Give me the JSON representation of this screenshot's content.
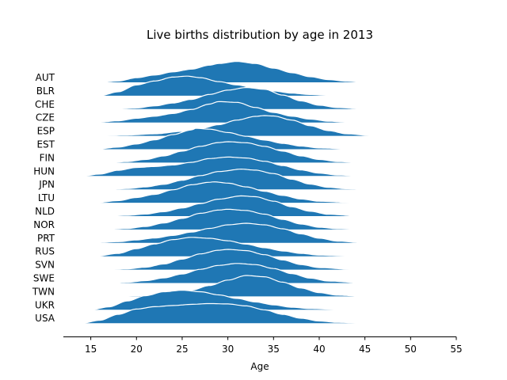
{
  "chart_data": {
    "type": "area",
    "subtype": "ridgeline",
    "title": "Live births distribution by age in 2013",
    "xlabel": "Age",
    "ylabel": "",
    "xlim": [
      12,
      55
    ],
    "xticks": [
      15,
      20,
      25,
      30,
      35,
      40,
      45,
      50,
      55
    ],
    "grid": false,
    "fill_color": "#1f77b4",
    "outline_color": "#ffffff",
    "series": [
      {
        "name": "AUT",
        "start": 16,
        "end": 45,
        "peak_x": 31,
        "peak_height": 1.6,
        "profile": [
          [
            16,
            0.0
          ],
          [
            18,
            0.06
          ],
          [
            20,
            0.22
          ],
          [
            22,
            0.35
          ],
          [
            24,
            0.5
          ],
          [
            26,
            0.63
          ],
          [
            28,
            0.82
          ],
          [
            29,
            0.9
          ],
          [
            31,
            1.0
          ],
          [
            33,
            0.9
          ],
          [
            35,
            0.68
          ],
          [
            37,
            0.46
          ],
          [
            39,
            0.27
          ],
          [
            41,
            0.13
          ],
          [
            43,
            0.05
          ],
          [
            45,
            0.0
          ]
        ]
      },
      {
        "name": "BLR",
        "start": 16,
        "end": 43,
        "peak_x": 25.5,
        "peak_height": 1.5,
        "profile": [
          [
            16,
            0.0
          ],
          [
            18,
            0.2
          ],
          [
            20,
            0.55
          ],
          [
            22,
            0.75
          ],
          [
            24,
            0.95
          ],
          [
            25.5,
            1.0
          ],
          [
            27,
            0.92
          ],
          [
            29,
            0.72
          ],
          [
            31,
            0.55
          ],
          [
            33,
            0.38
          ],
          [
            35,
            0.24
          ],
          [
            37,
            0.13
          ],
          [
            39,
            0.06
          ],
          [
            41,
            0.02
          ],
          [
            43,
            0.0
          ]
        ]
      },
      {
        "name": "CHE",
        "start": 17.5,
        "end": 45,
        "peak_x": 32,
        "peak_height": 1.65,
        "profile": [
          [
            17.5,
            0.0
          ],
          [
            20,
            0.05
          ],
          [
            22,
            0.15
          ],
          [
            24,
            0.28
          ],
          [
            26,
            0.45
          ],
          [
            28,
            0.68
          ],
          [
            30,
            0.88
          ],
          [
            32,
            1.0
          ],
          [
            34,
            0.92
          ],
          [
            36,
            0.65
          ],
          [
            38,
            0.38
          ],
          [
            40,
            0.18
          ],
          [
            42,
            0.07
          ],
          [
            45,
            0.0
          ]
        ]
      },
      {
        "name": "CZE",
        "start": 15.5,
        "end": 43.5,
        "peak_x": 29,
        "peak_height": 1.6,
        "profile": [
          [
            15.5,
            0.0
          ],
          [
            18,
            0.08
          ],
          [
            20,
            0.2
          ],
          [
            22,
            0.3
          ],
          [
            24,
            0.43
          ],
          [
            26,
            0.62
          ],
          [
            28,
            0.88
          ],
          [
            29,
            1.0
          ],
          [
            31,
            0.96
          ],
          [
            33,
            0.72
          ],
          [
            35,
            0.48
          ],
          [
            37,
            0.3
          ],
          [
            39,
            0.16
          ],
          [
            41,
            0.06
          ],
          [
            43.5,
            0.0
          ]
        ]
      },
      {
        "name": "ESP",
        "start": 16,
        "end": 46,
        "peak_x": 34,
        "peak_height": 1.55,
        "profile": [
          [
            16,
            0.0
          ],
          [
            19,
            0.04
          ],
          [
            22,
            0.1
          ],
          [
            25,
            0.22
          ],
          [
            27,
            0.36
          ],
          [
            29,
            0.55
          ],
          [
            31,
            0.78
          ],
          [
            33,
            0.96
          ],
          [
            34,
            1.0
          ],
          [
            35,
            0.98
          ],
          [
            37,
            0.78
          ],
          [
            39,
            0.5
          ],
          [
            41,
            0.26
          ],
          [
            43,
            0.1
          ],
          [
            46,
            0.0
          ]
        ]
      },
      {
        "name": "EST",
        "start": 15.5,
        "end": 44,
        "peak_x": 26.5,
        "peak_height": 1.6,
        "profile": [
          [
            15.5,
            0.0
          ],
          [
            18,
            0.1
          ],
          [
            20,
            0.25
          ],
          [
            22,
            0.45
          ],
          [
            24,
            0.7
          ],
          [
            26,
            0.92
          ],
          [
            26.5,
            1.0
          ],
          [
            28,
            0.96
          ],
          [
            30,
            0.8
          ],
          [
            32,
            0.62
          ],
          [
            34,
            0.44
          ],
          [
            36,
            0.28
          ],
          [
            38,
            0.15
          ],
          [
            40,
            0.06
          ],
          [
            44,
            0.0
          ]
        ]
      },
      {
        "name": "FIN",
        "start": 17,
        "end": 44.5,
        "peak_x": 30,
        "peak_height": 1.6,
        "profile": [
          [
            17,
            0.0
          ],
          [
            19,
            0.05
          ],
          [
            21,
            0.15
          ],
          [
            23,
            0.32
          ],
          [
            25,
            0.55
          ],
          [
            27,
            0.78
          ],
          [
            29,
            0.96
          ],
          [
            30,
            1.0
          ],
          [
            32,
            0.95
          ],
          [
            34,
            0.78
          ],
          [
            36,
            0.55
          ],
          [
            38,
            0.32
          ],
          [
            40,
            0.15
          ],
          [
            42,
            0.05
          ],
          [
            44.5,
            0.0
          ]
        ]
      },
      {
        "name": "HUN",
        "start": 14,
        "end": 44.5,
        "peak_x": 30,
        "peak_height": 1.45,
        "profile": [
          [
            14,
            0.0
          ],
          [
            16,
            0.1
          ],
          [
            18,
            0.3
          ],
          [
            20,
            0.45
          ],
          [
            22,
            0.5
          ],
          [
            24,
            0.58
          ],
          [
            26,
            0.72
          ],
          [
            28,
            0.92
          ],
          [
            30,
            1.0
          ],
          [
            32,
            0.95
          ],
          [
            34,
            0.78
          ],
          [
            36,
            0.55
          ],
          [
            38,
            0.32
          ],
          [
            40,
            0.15
          ],
          [
            42,
            0.05
          ],
          [
            44.5,
            0.0
          ]
        ]
      },
      {
        "name": "JPN",
        "start": 17,
        "end": 45,
        "peak_x": 31.5,
        "peak_height": 1.55,
        "profile": [
          [
            17,
            0.0
          ],
          [
            19,
            0.04
          ],
          [
            21,
            0.12
          ],
          [
            23,
            0.25
          ],
          [
            25,
            0.45
          ],
          [
            27,
            0.68
          ],
          [
            29,
            0.88
          ],
          [
            31.5,
            1.0
          ],
          [
            33,
            0.95
          ],
          [
            35,
            0.78
          ],
          [
            37,
            0.5
          ],
          [
            39,
            0.26
          ],
          [
            41,
            0.1
          ],
          [
            43,
            0.03
          ],
          [
            45,
            0.0
          ]
        ]
      },
      {
        "name": "LTU",
        "start": 15.5,
        "end": 44,
        "peak_x": 28.5,
        "peak_height": 1.6,
        "profile": [
          [
            15.5,
            0.0
          ],
          [
            18,
            0.1
          ],
          [
            20,
            0.25
          ],
          [
            22,
            0.4
          ],
          [
            24,
            0.62
          ],
          [
            26,
            0.86
          ],
          [
            28,
            0.98
          ],
          [
            28.5,
            1.0
          ],
          [
            30,
            0.94
          ],
          [
            32,
            0.76
          ],
          [
            34,
            0.55
          ],
          [
            36,
            0.35
          ],
          [
            38,
            0.18
          ],
          [
            40,
            0.07
          ],
          [
            44,
            0.0
          ]
        ]
      },
      {
        "name": "NLD",
        "start": 16.5,
        "end": 44.5,
        "peak_x": 31.5,
        "peak_height": 1.55,
        "profile": [
          [
            16.5,
            0.0
          ],
          [
            19,
            0.04
          ],
          [
            21,
            0.1
          ],
          [
            23,
            0.22
          ],
          [
            25,
            0.4
          ],
          [
            27,
            0.62
          ],
          [
            29,
            0.84
          ],
          [
            31.5,
            1.0
          ],
          [
            33,
            0.96
          ],
          [
            35,
            0.74
          ],
          [
            37,
            0.46
          ],
          [
            39,
            0.24
          ],
          [
            41,
            0.09
          ],
          [
            44.5,
            0.0
          ]
        ]
      },
      {
        "name": "NOR",
        "start": 16.5,
        "end": 44.5,
        "peak_x": 30,
        "peak_height": 1.55,
        "profile": [
          [
            16.5,
            0.0
          ],
          [
            19,
            0.05
          ],
          [
            21,
            0.15
          ],
          [
            23,
            0.32
          ],
          [
            25,
            0.55
          ],
          [
            27,
            0.8
          ],
          [
            29,
            0.96
          ],
          [
            30,
            1.0
          ],
          [
            32,
            0.94
          ],
          [
            34,
            0.76
          ],
          [
            36,
            0.5
          ],
          [
            38,
            0.27
          ],
          [
            40,
            0.11
          ],
          [
            42,
            0.04
          ],
          [
            44.5,
            0.0
          ]
        ]
      },
      {
        "name": "PRT",
        "start": 15,
        "end": 45,
        "peak_x": 32,
        "peak_height": 1.5,
        "profile": [
          [
            15,
            0.0
          ],
          [
            18,
            0.06
          ],
          [
            20,
            0.15
          ],
          [
            22,
            0.25
          ],
          [
            24,
            0.38
          ],
          [
            26,
            0.55
          ],
          [
            28,
            0.74
          ],
          [
            30,
            0.92
          ],
          [
            32,
            1.0
          ],
          [
            34,
            0.92
          ],
          [
            36,
            0.72
          ],
          [
            38,
            0.46
          ],
          [
            40,
            0.24
          ],
          [
            42,
            0.09
          ],
          [
            45,
            0.0
          ]
        ]
      },
      {
        "name": "RUS",
        "start": 15.5,
        "end": 44,
        "peak_x": 26,
        "peak_height": 1.45,
        "profile": [
          [
            15.5,
            0.0
          ],
          [
            18,
            0.15
          ],
          [
            20,
            0.4
          ],
          [
            22,
            0.65
          ],
          [
            24,
            0.88
          ],
          [
            26,
            1.0
          ],
          [
            28,
            0.95
          ],
          [
            30,
            0.82
          ],
          [
            32,
            0.64
          ],
          [
            34,
            0.45
          ],
          [
            36,
            0.28
          ],
          [
            38,
            0.15
          ],
          [
            40,
            0.06
          ],
          [
            44,
            0.0
          ]
        ]
      },
      {
        "name": "SVN",
        "start": 17,
        "end": 44,
        "peak_x": 30,
        "peak_height": 1.55,
        "profile": [
          [
            17,
            0.0
          ],
          [
            19,
            0.04
          ],
          [
            21,
            0.12
          ],
          [
            23,
            0.28
          ],
          [
            25,
            0.52
          ],
          [
            27,
            0.78
          ],
          [
            29,
            0.96
          ],
          [
            30,
            1.0
          ],
          [
            32,
            0.94
          ],
          [
            34,
            0.74
          ],
          [
            36,
            0.48
          ],
          [
            38,
            0.25
          ],
          [
            40,
            0.1
          ],
          [
            44,
            0.0
          ]
        ]
      },
      {
        "name": "SWE",
        "start": 17,
        "end": 45,
        "peak_x": 31,
        "peak_height": 1.5,
        "profile": [
          [
            17,
            0.0
          ],
          [
            19,
            0.04
          ],
          [
            21,
            0.12
          ],
          [
            23,
            0.26
          ],
          [
            25,
            0.46
          ],
          [
            27,
            0.7
          ],
          [
            29,
            0.9
          ],
          [
            31,
            1.0
          ],
          [
            33,
            0.94
          ],
          [
            35,
            0.74
          ],
          [
            37,
            0.48
          ],
          [
            39,
            0.25
          ],
          [
            41,
            0.1
          ],
          [
            45,
            0.0
          ]
        ]
      },
      {
        "name": "TWN",
        "start": 18,
        "end": 45,
        "peak_x": 32,
        "peak_height": 1.6,
        "profile": [
          [
            18,
            0.0
          ],
          [
            20,
            0.03
          ],
          [
            22,
            0.08
          ],
          [
            24,
            0.16
          ],
          [
            26,
            0.3
          ],
          [
            28,
            0.52
          ],
          [
            30,
            0.78
          ],
          [
            32,
            1.0
          ],
          [
            34,
            0.94
          ],
          [
            36,
            0.68
          ],
          [
            38,
            0.4
          ],
          [
            40,
            0.18
          ],
          [
            42,
            0.06
          ],
          [
            45,
            0.0
          ]
        ]
      },
      {
        "name": "UKR",
        "start": 15,
        "end": 43,
        "peak_x": 25,
        "peak_height": 1.5,
        "profile": [
          [
            15,
            0.0
          ],
          [
            17,
            0.15
          ],
          [
            19,
            0.45
          ],
          [
            21,
            0.72
          ],
          [
            23,
            0.92
          ],
          [
            25,
            1.0
          ],
          [
            27,
            0.92
          ],
          [
            29,
            0.76
          ],
          [
            31,
            0.58
          ],
          [
            33,
            0.4
          ],
          [
            35,
            0.25
          ],
          [
            37,
            0.13
          ],
          [
            39,
            0.06
          ],
          [
            43,
            0.0
          ]
        ]
      },
      {
        "name": "USA",
        "start": 14,
        "end": 45,
        "peak_x": 28,
        "peak_height": 1.5,
        "profile": [
          [
            14,
            0.0
          ],
          [
            16,
            0.15
          ],
          [
            18,
            0.45
          ],
          [
            20,
            0.72
          ],
          [
            22,
            0.84
          ],
          [
            24,
            0.9
          ],
          [
            26,
            0.96
          ],
          [
            28,
            1.0
          ],
          [
            30,
            0.98
          ],
          [
            32,
            0.88
          ],
          [
            34,
            0.68
          ],
          [
            36,
            0.45
          ],
          [
            38,
            0.25
          ],
          [
            40,
            0.11
          ],
          [
            42,
            0.04
          ],
          [
            45,
            0.0
          ]
        ]
      }
    ]
  }
}
